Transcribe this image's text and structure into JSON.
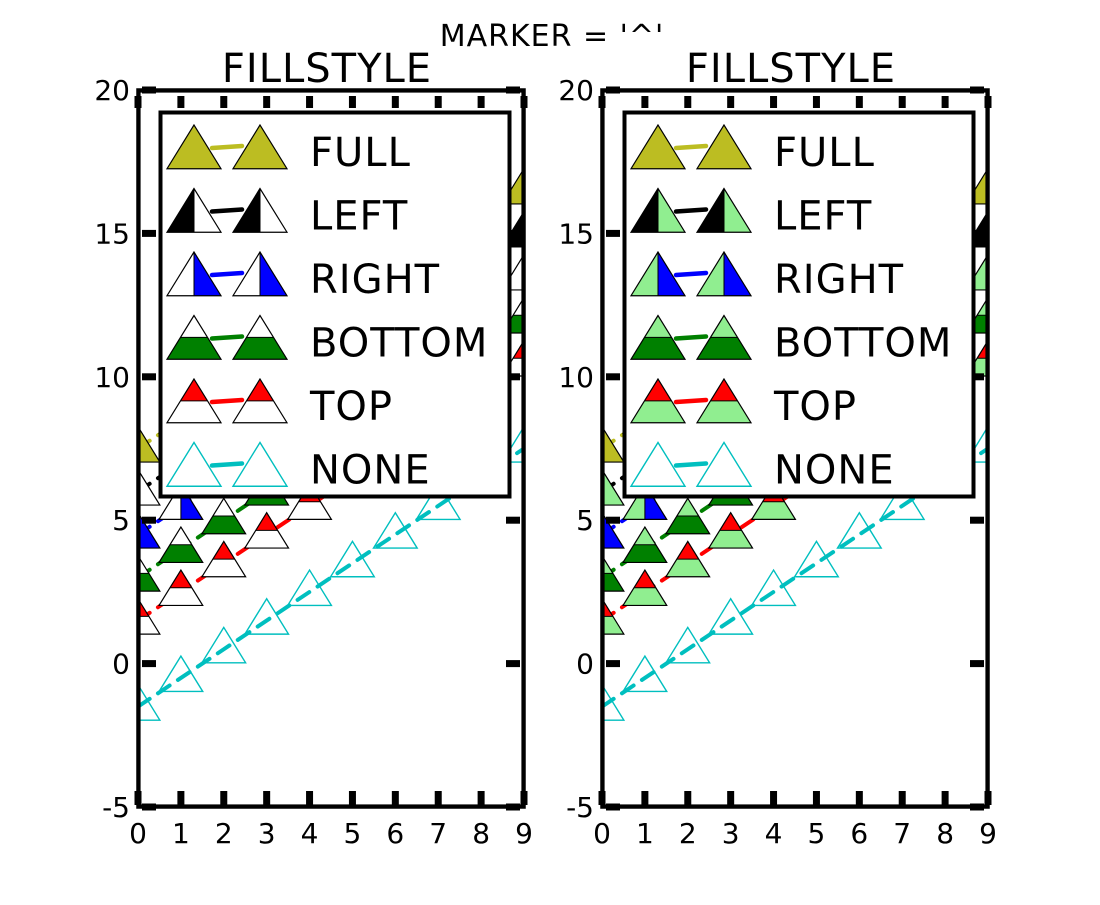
{
  "figure": {
    "suptitle": "MARKER = '^'"
  },
  "chart_data": [
    {
      "type": "line",
      "title": "FILLSTYLE",
      "xlabel": "",
      "ylabel": "",
      "xlim": [
        0,
        9
      ],
      "ylim": [
        -5,
        20
      ],
      "x_ticks": [
        "0",
        "1",
        "2",
        "3",
        "4",
        "5",
        "6",
        "7",
        "8",
        "9"
      ],
      "y_ticks": [
        "-5",
        "0",
        "5",
        "10",
        "15",
        "20"
      ],
      "grid": false,
      "legend_position": "upper",
      "marker": "triangle-up",
      "series": [
        {
          "name": "FULL",
          "fillstyle": "full",
          "color": "#bcbd22",
          "fill_alt": "none",
          "x": [
            0,
            1,
            2,
            3,
            4,
            5,
            6,
            7,
            8,
            9
          ],
          "y": [
            7.5,
            8.5,
            9.5,
            10.5,
            11.5,
            12.5,
            13.5,
            14.5,
            15.5,
            16.5
          ]
        },
        {
          "name": "LEFT",
          "fillstyle": "left",
          "color": "#000000",
          "fill_alt": "none",
          "x": [
            0,
            1,
            2,
            3,
            4,
            5,
            6,
            7,
            8,
            9
          ],
          "y": [
            6.0,
            7.0,
            8.0,
            9.0,
            10.0,
            11.0,
            12.0,
            13.0,
            14.0,
            15.0
          ]
        },
        {
          "name": "RIGHT",
          "fillstyle": "right",
          "color": "#0000ff",
          "fill_alt": "none",
          "x": [
            0,
            1,
            2,
            3,
            4,
            5,
            6,
            7,
            8,
            9
          ],
          "y": [
            4.5,
            5.5,
            6.5,
            7.5,
            8.5,
            9.5,
            10.5,
            11.5,
            12.5,
            13.5
          ]
        },
        {
          "name": "BOTTOM",
          "fillstyle": "bottom",
          "color": "#008000",
          "fill_alt": "none",
          "x": [
            0,
            1,
            2,
            3,
            4,
            5,
            6,
            7,
            8,
            9
          ],
          "y": [
            3.0,
            4.0,
            5.0,
            6.0,
            7.0,
            8.0,
            9.0,
            10.0,
            11.0,
            12.0
          ]
        },
        {
          "name": "TOP",
          "fillstyle": "top",
          "color": "#ff0000",
          "fill_alt": "none",
          "x": [
            0,
            1,
            2,
            3,
            4,
            5,
            6,
            7,
            8,
            9
          ],
          "y": [
            1.5,
            2.5,
            3.5,
            4.5,
            5.5,
            6.5,
            7.5,
            8.5,
            9.5,
            10.5
          ]
        },
        {
          "name": "NONE",
          "fillstyle": "none",
          "color": "#00bfbf",
          "fill_alt": "none",
          "x": [
            0,
            1,
            2,
            3,
            4,
            5,
            6,
            7,
            8,
            9
          ],
          "y": [
            -1.5,
            -0.5,
            0.5,
            1.5,
            2.5,
            3.5,
            4.5,
            5.5,
            6.5,
            7.5
          ]
        }
      ]
    },
    {
      "type": "line",
      "title": "FILLSTYLE",
      "xlabel": "",
      "ylabel": "",
      "xlim": [
        0,
        9
      ],
      "ylim": [
        -5,
        20
      ],
      "x_ticks": [
        "0",
        "1",
        "2",
        "3",
        "4",
        "5",
        "6",
        "7",
        "8",
        "9"
      ],
      "y_ticks": [
        "-5",
        "0",
        "5",
        "10",
        "15",
        "20"
      ],
      "grid": false,
      "legend_position": "upper",
      "marker": "triangle-up",
      "series": [
        {
          "name": "FULL",
          "fillstyle": "full",
          "color": "#bcbd22",
          "fill_alt": "#90ee90",
          "x": [
            0,
            1,
            2,
            3,
            4,
            5,
            6,
            7,
            8,
            9
          ],
          "y": [
            7.5,
            8.5,
            9.5,
            10.5,
            11.5,
            12.5,
            13.5,
            14.5,
            15.5,
            16.5
          ]
        },
        {
          "name": "LEFT",
          "fillstyle": "left",
          "color": "#000000",
          "fill_alt": "#90ee90",
          "x": [
            0,
            1,
            2,
            3,
            4,
            5,
            6,
            7,
            8,
            9
          ],
          "y": [
            6.0,
            7.0,
            8.0,
            9.0,
            10.0,
            11.0,
            12.0,
            13.0,
            14.0,
            15.0
          ]
        },
        {
          "name": "RIGHT",
          "fillstyle": "right",
          "color": "#0000ff",
          "fill_alt": "#90ee90",
          "x": [
            0,
            1,
            2,
            3,
            4,
            5,
            6,
            7,
            8,
            9
          ],
          "y": [
            4.5,
            5.5,
            6.5,
            7.5,
            8.5,
            9.5,
            10.5,
            11.5,
            12.5,
            13.5
          ]
        },
        {
          "name": "BOTTOM",
          "fillstyle": "bottom",
          "color": "#008000",
          "fill_alt": "#90ee90",
          "x": [
            0,
            1,
            2,
            3,
            4,
            5,
            6,
            7,
            8,
            9
          ],
          "y": [
            3.0,
            4.0,
            5.0,
            6.0,
            7.0,
            8.0,
            9.0,
            10.0,
            11.0,
            12.0
          ]
        },
        {
          "name": "TOP",
          "fillstyle": "top",
          "color": "#ff0000",
          "fill_alt": "#90ee90",
          "x": [
            0,
            1,
            2,
            3,
            4,
            5,
            6,
            7,
            8,
            9
          ],
          "y": [
            1.5,
            2.5,
            3.5,
            4.5,
            5.5,
            6.5,
            7.5,
            8.5,
            9.5,
            10.5
          ]
        },
        {
          "name": "NONE",
          "fillstyle": "none",
          "color": "#00bfbf",
          "fill_alt": "#90ee90",
          "x": [
            0,
            1,
            2,
            3,
            4,
            5,
            6,
            7,
            8,
            9
          ],
          "y": [
            -1.5,
            -0.5,
            0.5,
            1.5,
            2.5,
            3.5,
            4.5,
            5.5,
            6.5,
            7.5
          ]
        }
      ]
    }
  ]
}
